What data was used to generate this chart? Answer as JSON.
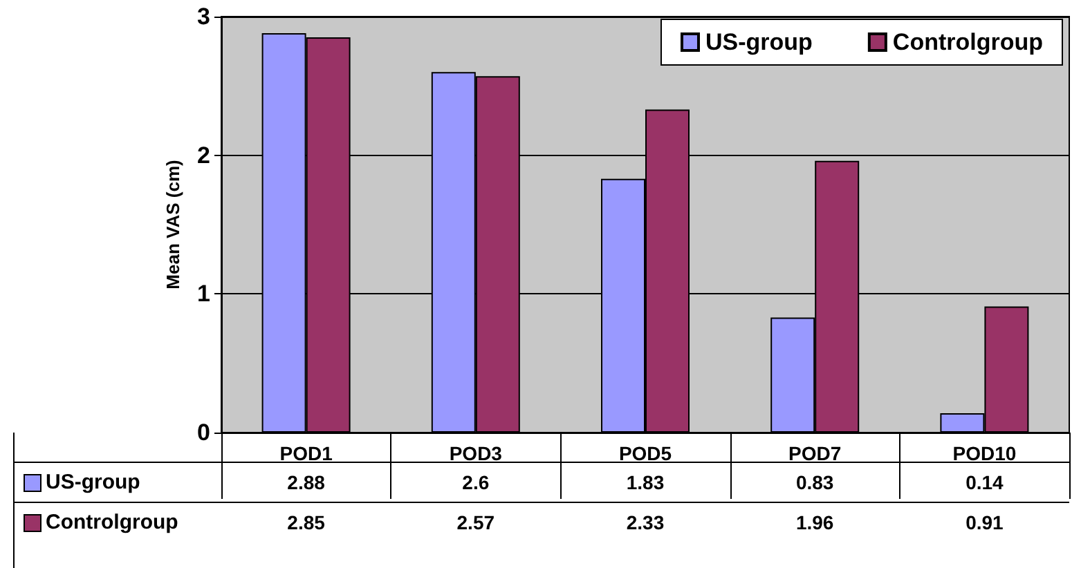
{
  "chart_data": {
    "type": "bar",
    "ylabel": "Mean VAS (cm)",
    "categories": [
      "POD1",
      "POD3",
      "POD5",
      "POD7",
      "POD10"
    ],
    "series": [
      {
        "name": "US-group",
        "color": "#9999ff",
        "values": [
          2.88,
          2.6,
          1.83,
          0.83,
          0.14
        ]
      },
      {
        "name": "Controlgroup",
        "color": "#993366",
        "values": [
          2.85,
          2.57,
          2.33,
          1.96,
          0.91
        ]
      }
    ],
    "ylim": [
      0,
      3
    ],
    "yticks": [
      0,
      1,
      2,
      3
    ],
    "grid": "y",
    "legend": "top right",
    "data_labels": true
  }
}
